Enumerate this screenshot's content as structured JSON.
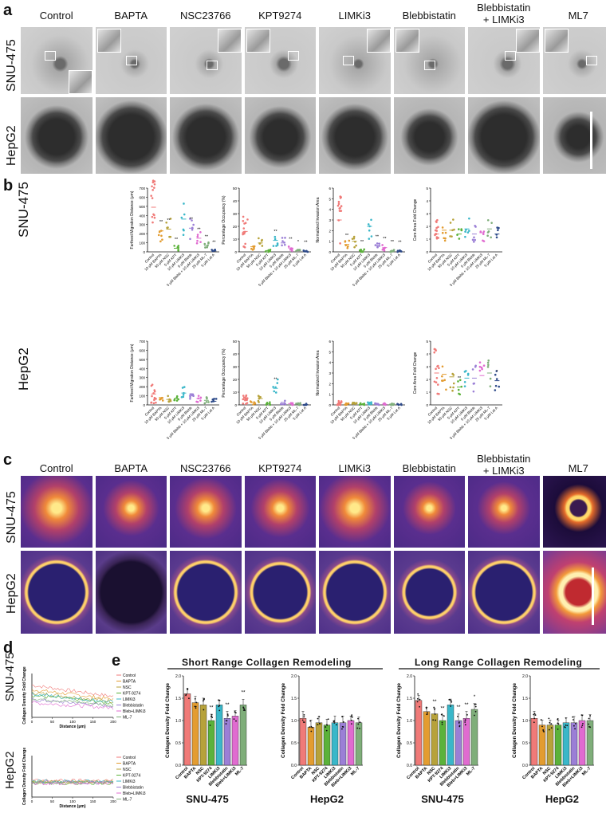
{
  "panels": {
    "a": "a",
    "b": "b",
    "c": "c",
    "d": "d",
    "e": "e"
  },
  "cell_lines": [
    "SNU-475",
    "HepG2"
  ],
  "treatments": [
    "Control",
    "BAPTA",
    "NSC23766",
    "KPT9274",
    "LIMKi3",
    "Blebbistatin",
    "Blebbistatin\n+ LIMKi3",
    "ML7"
  ],
  "colors": {
    "Control": "#f07a78",
    "BAPTA": "#e39c30",
    "NSC": "#b7a23a",
    "KPT": "#5bb23a",
    "LIMKi3": "#3ab7c9",
    "Blebbistatin": "#9b7fd6",
    "Bleb+LIMKi3": "#e06bd0",
    "ML7": "#7fae7a",
    "LatA": "#2e4b8a"
  },
  "panel_b": {
    "xlabels": [
      "Control",
      "10 μM BAPTA",
      "50 μM NSC",
      "5 μM KPT",
      "10 μM LIMKi3",
      "5 μM Blebb",
      "5 μM Blebb + 10 μM LIMKi3",
      "25 μM ML-7",
      "5 μM Lat A"
    ],
    "charts": [
      {
        "row": "SNU-475",
        "ylabel": "Farthest Migration Distance (μm)",
        "yticks": [
          0,
          100,
          200,
          300,
          400,
          500,
          600,
          700
        ],
        "ylim": [
          0,
          700
        ],
        "means": [
          490,
          230,
          250,
          40,
          360,
          260,
          150,
          70,
          10
        ],
        "sig": [
          "",
          "**",
          "**",
          "**",
          "",
          "**",
          "**",
          "**",
          "**"
        ]
      },
      {
        "row": "SNU-475",
        "ylabel": "Percentage Occupancy (%)",
        "yticks": [
          0,
          10,
          20,
          30,
          40,
          50
        ],
        "ylim": [
          0,
          50
        ],
        "means": [
          16,
          4,
          7,
          1,
          9,
          7,
          3,
          1,
          0.5
        ],
        "sig": [
          "",
          "",
          "",
          "",
          "**",
          "",
          "**",
          "*",
          "**"
        ]
      },
      {
        "row": "SNU-475",
        "ylabel": "Normalized Invasion Area",
        "yticks": [
          0,
          1,
          2,
          3,
          4,
          5,
          6
        ],
        "ylim": [
          0,
          6
        ],
        "means": [
          3,
          0.7,
          1.0,
          0.1,
          2.4,
          0.6,
          0.4,
          0.1,
          0.05
        ],
        "sig": [
          "",
          "**",
          "",
          "**",
          "",
          "**",
          "**",
          "**",
          "**"
        ]
      },
      {
        "row": "SNU-475",
        "ylabel": "Core Area Fold Change",
        "yticks": [
          0,
          1,
          2,
          3,
          4,
          5
        ],
        "ylim": [
          0,
          5
        ],
        "means": [
          1.4,
          1.7,
          1.7,
          1.4,
          1.8,
          1.4,
          1.5,
          1.8,
          1.4
        ],
        "sig": [
          "",
          "",
          "",
          "",
          "",
          "",
          "",
          "",
          ""
        ]
      },
      {
        "row": "HepG2",
        "ylabel": "Farthest Migration Distance (μm)",
        "yticks": [
          0,
          100,
          200,
          300,
          400,
          500,
          600,
          700
        ],
        "ylim": [
          0,
          700
        ],
        "means": [
          120,
          80,
          60,
          70,
          130,
          100,
          70,
          50,
          40
        ],
        "sig": [
          "",
          "",
          "",
          "",
          "",
          "",
          "",
          "",
          ""
        ]
      },
      {
        "row": "HepG2",
        "ylabel": "Percentage Occupancy (%)",
        "yticks": [
          0,
          10,
          20,
          30,
          40,
          50
        ],
        "ylim": [
          0,
          50
        ],
        "means": [
          4,
          2,
          5,
          1,
          13,
          2,
          1,
          0.5,
          0.3
        ],
        "sig": [
          "",
          "",
          "",
          "",
          "**",
          "",
          "",
          "",
          ""
        ]
      },
      {
        "row": "HepG2",
        "ylabel": "Normalized Invasion Area",
        "yticks": [
          0,
          1,
          2,
          3,
          4,
          5,
          6
        ],
        "ylim": [
          0,
          6
        ],
        "means": [
          0.15,
          0.08,
          0.1,
          0.05,
          0.15,
          0.08,
          0.05,
          0.03,
          0.02
        ],
        "sig": [
          "",
          "",
          "",
          "",
          "",
          "",
          "",
          "",
          ""
        ]
      },
      {
        "row": "HepG2",
        "ylabel": "Core Area Fold Change",
        "yticks": [
          0,
          1,
          2,
          3,
          4,
          5
        ],
        "ylim": [
          0,
          5
        ],
        "means": [
          2.5,
          2.4,
          2.2,
          1.4,
          2.1,
          2.1,
          2.3,
          2.5,
          1.9
        ],
        "sig": [
          "",
          "",
          "",
          "**",
          "",
          "",
          "",
          "",
          "*"
        ]
      }
    ]
  },
  "panel_d": {
    "xlabel": "Distance (μm)",
    "ylabel": "Collagen Density Fold Change",
    "xticks": [
      0,
      50,
      100,
      150,
      200
    ],
    "legend": [
      "Control",
      "BAPTA",
      "NSC",
      "KPT-9274",
      "LIMKi3",
      "Blebbistatin",
      "Bleb+LIMKi3",
      "ML-7"
    ],
    "snu_levels": [
      2.2,
      1.9,
      1.7,
      1.5,
      1.6,
      1.2,
      1.0,
      1.3
    ],
    "hep_levels": [
      1.2,
      1.1,
      1.1,
      1.0,
      1.15,
      1.05,
      1.0,
      1.1
    ]
  },
  "panel_e": {
    "short_title": "Short Range   Collagen   Remodeling",
    "long_title": "Long Range   Collagen   Remodeling",
    "ylabel": "Collagen Density Fold  Change",
    "xlabels": [
      "Control",
      "BAPTA",
      "NSC",
      "KPT-9274",
      "LIMKi3",
      "Blebbistatin",
      "Bleb+LIMKi3",
      "ML-7"
    ],
    "charts": [
      {
        "title": "SNU-475",
        "yticks": [
          0,
          0.5,
          1.0,
          1.5,
          2.0
        ],
        "ylim": [
          0,
          2.0
        ],
        "values": [
          1.6,
          1.4,
          1.35,
          1.0,
          1.35,
          1.05,
          1.1,
          1.35
        ],
        "sig": [
          "",
          "",
          "",
          "**",
          "",
          "**",
          "",
          "**"
        ]
      },
      {
        "title": "HepG2",
        "yticks": [
          0,
          0.5,
          1.0,
          1.5,
          2.0
        ],
        "ylim": [
          0,
          2.0
        ],
        "values": [
          1.05,
          0.85,
          0.95,
          0.9,
          0.95,
          0.95,
          1.0,
          0.95
        ],
        "sig": [
          "",
          "",
          "",
          "",
          "",
          "",
          "",
          ""
        ]
      },
      {
        "title": "SNU-475",
        "yticks": [
          0,
          0.5,
          1.0,
          1.5,
          2.0
        ],
        "ylim": [
          0,
          2.0
        ],
        "values": [
          1.45,
          1.2,
          1.15,
          1.0,
          1.35,
          1.0,
          1.05,
          1.25
        ],
        "sig": [
          "",
          "",
          "**",
          "**",
          "",
          "**",
          "**",
          "*"
        ]
      },
      {
        "title": "HepG2",
        "yticks": [
          0,
          0.5,
          1.0,
          1.5,
          2.0
        ],
        "ylim": [
          0,
          2.0
        ],
        "values": [
          1.05,
          0.9,
          0.9,
          0.9,
          0.95,
          0.95,
          1.0,
          1.0
        ],
        "sig": [
          "",
          "",
          "",
          "",
          "",
          "",
          "",
          ""
        ]
      }
    ]
  }
}
